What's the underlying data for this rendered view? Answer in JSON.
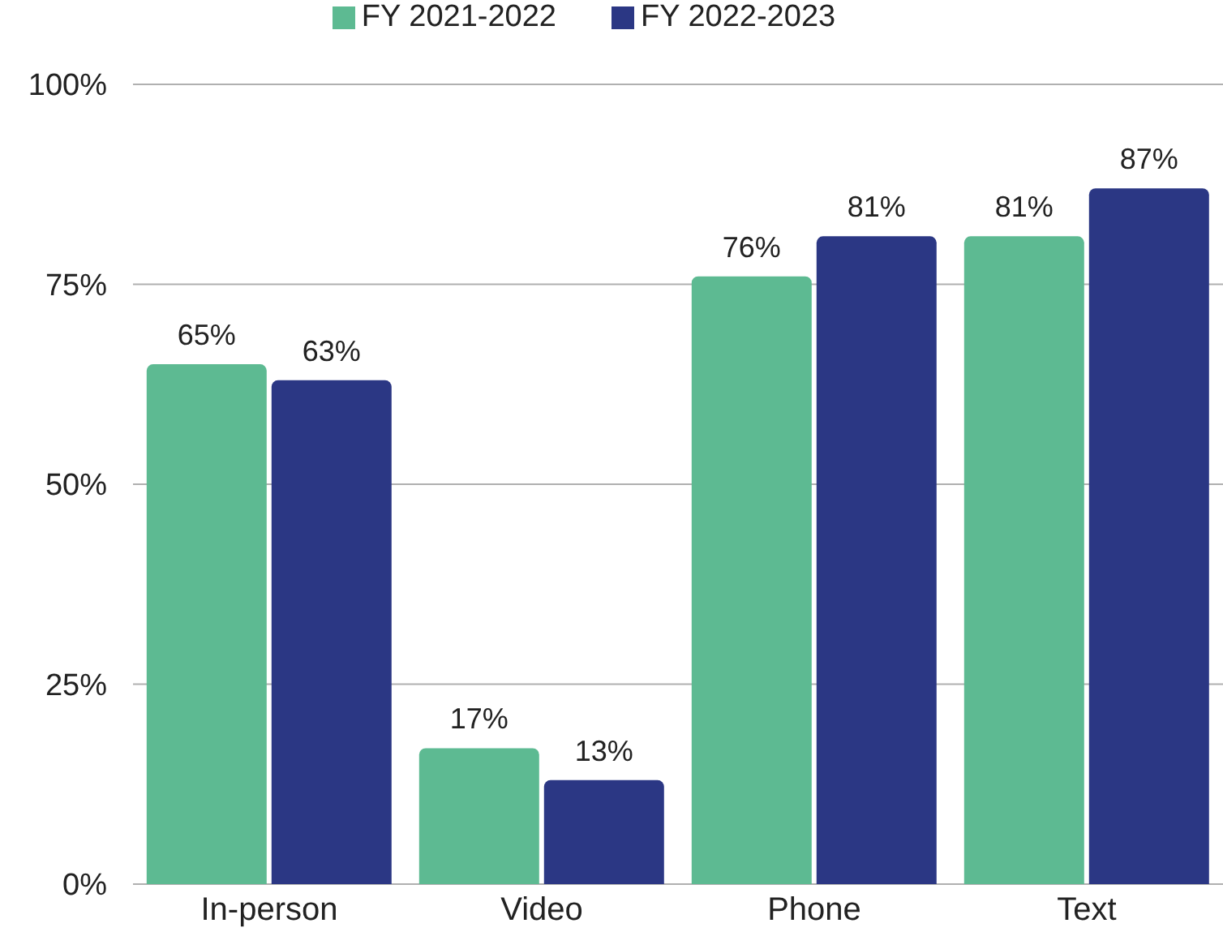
{
  "chart_data": {
    "type": "bar",
    "categories": [
      "In-person",
      "Video",
      "Phone",
      "Text"
    ],
    "series": [
      {
        "name": "FY 2021-2022",
        "color": "#5dba92",
        "values": [
          65,
          17,
          76,
          81
        ],
        "value_labels": [
          "65%",
          "17%",
          "76%",
          "81%"
        ]
      },
      {
        "name": "FY 2022-2023",
        "color": "#2b3784",
        "values": [
          63,
          13,
          81,
          87
        ],
        "value_labels": [
          "63%",
          "13%",
          "81%",
          "87%"
        ]
      }
    ],
    "ylim": [
      0,
      100
    ],
    "yticks": [
      {
        "value": 0,
        "label": "0%"
      },
      {
        "value": 25,
        "label": "25%"
      },
      {
        "value": 50,
        "label": "50%"
      },
      {
        "value": 75,
        "label": "75%"
      },
      {
        "value": 100,
        "label": "100%"
      }
    ],
    "grid": "y",
    "legend": "top"
  }
}
